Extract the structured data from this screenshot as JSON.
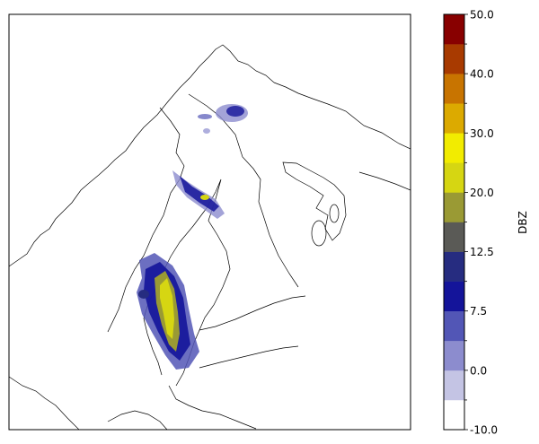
{
  "map": {
    "region": "Fennoscandia / Baltic Sea",
    "coastline_color": "#000000",
    "background": "#ffffff"
  },
  "colorbar": {
    "label": "DBZ",
    "tick_labels": [
      "-10.0",
      "0.0",
      "7.5",
      "12.5",
      "20.0",
      "30.0",
      "40.0",
      "50.0"
    ],
    "bands": [
      {
        "color": "#ffffff"
      },
      {
        "color": "#c4c4e4"
      },
      {
        "color": "#8c8cce"
      },
      {
        "color": "#5256b6"
      },
      {
        "color": "#14149a"
      },
      {
        "color": "#262c80"
      },
      {
        "color": "#5a5a56"
      },
      {
        "color": "#9a9a34"
      },
      {
        "color": "#d6d612"
      },
      {
        "color": "#f2ec00"
      },
      {
        "color": "#dcaa00"
      },
      {
        "color": "#c87400"
      },
      {
        "color": "#a83a00"
      },
      {
        "color": "#880000"
      }
    ]
  }
}
